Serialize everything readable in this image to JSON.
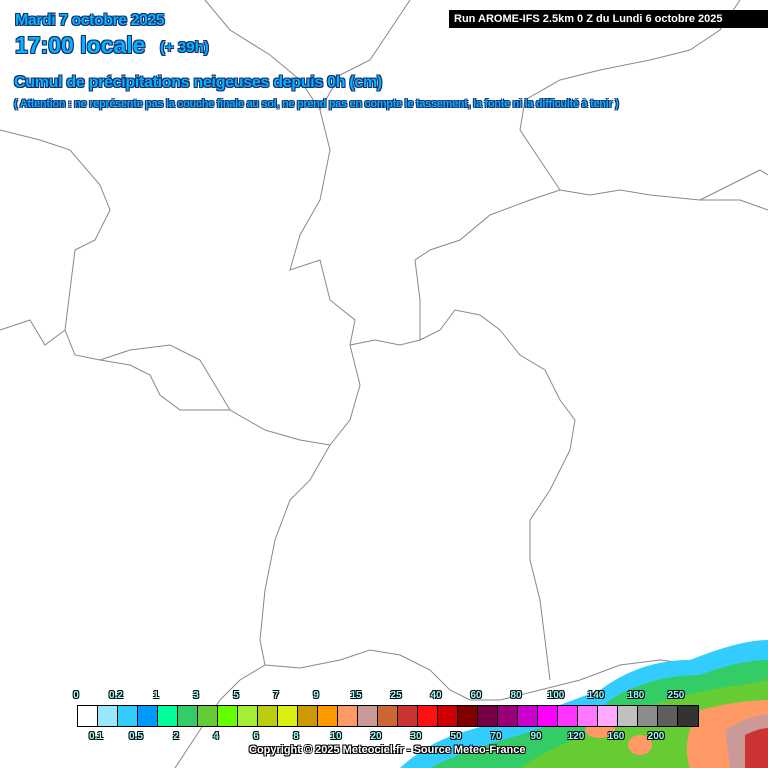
{
  "header": {
    "date": "Mardi 7 octobre 2025",
    "time": "17:00 locale",
    "lead": "(+ 39h)",
    "title": "Cumul de précipitations neigeuses depuis 0h (cm)",
    "warning": "( Attention : ne représente pas la couche finale au sol, ne prend pas en compte le tassement, la fonte ni la difficulté à tenir )",
    "run": "Run AROME-IFS 2.5km 0 Z du Lundi 6 octobre 2025"
  },
  "legend": {
    "labels": [
      "0",
      "0.1",
      "0.2",
      "0.5",
      "1",
      "2",
      "3",
      "4",
      "5",
      "6",
      "7",
      "8",
      "9",
      "10",
      "15",
      "20",
      "25",
      "30",
      "40",
      "50",
      "60",
      "70",
      "80",
      "90",
      "100",
      "120",
      "140",
      "160",
      "180",
      "200",
      "250"
    ],
    "colors": [
      "#ffffff",
      "#99e6ff",
      "#33ccff",
      "#0099ff",
      "#00ff99",
      "#33cc66",
      "#66cc33",
      "#66ff00",
      "#a6ee33",
      "#bbcc11",
      "#ddee11",
      "#cc9900",
      "#ff9900",
      "#ff9966",
      "#cc9999",
      "#cc6633",
      "#cc3333",
      "#ff1111",
      "#cc0000",
      "#800000",
      "#770044",
      "#990077",
      "#cc00cc",
      "#ff00ff",
      "#ff33ff",
      "#ff77ff",
      "#ffaaff",
      "#c0c0c0",
      "#8c8c8c",
      "#5f5f5f",
      "#333333"
    ]
  },
  "copyright": "Copyright © 2025 Meteociel.fr - Source Meteo-France"
}
